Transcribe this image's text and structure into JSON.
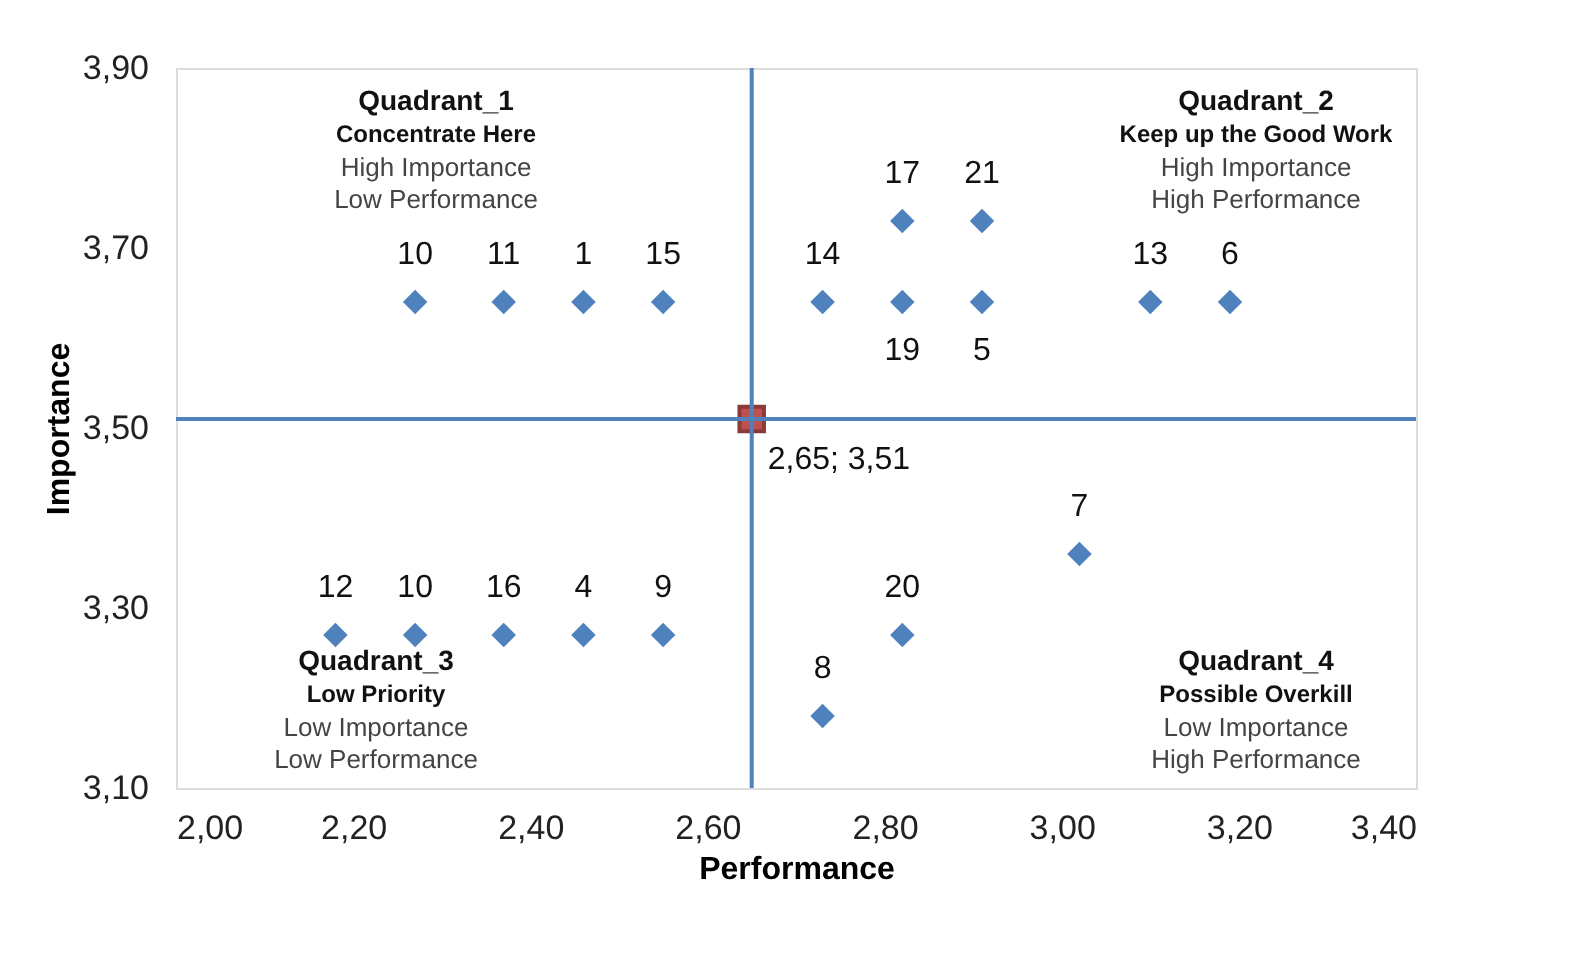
{
  "chart_data": {
    "type": "scatter",
    "xlabel": "Performance",
    "ylabel": "Importance",
    "xlim": [
      2.0,
      3.4
    ],
    "ylim": [
      3.1,
      3.9
    ],
    "xticks": [
      {
        "value": 2.0,
        "label": "2,00"
      },
      {
        "value": 2.2,
        "label": "2,20"
      },
      {
        "value": 2.4,
        "label": "2,40"
      },
      {
        "value": 2.6,
        "label": "2,60"
      },
      {
        "value": 2.8,
        "label": "2,80"
      },
      {
        "value": 3.0,
        "label": "3,00"
      },
      {
        "value": 3.2,
        "label": "3,20"
      },
      {
        "value": 3.4,
        "label": "3,40"
      }
    ],
    "yticks": [
      {
        "value": 3.1,
        "label": "3,10"
      },
      {
        "value": 3.3,
        "label": "3,30"
      },
      {
        "value": 3.5,
        "label": "3,50"
      },
      {
        "value": 3.7,
        "label": "3,70"
      },
      {
        "value": 3.9,
        "label": "3,90"
      }
    ],
    "grid": false,
    "marker": "diamond",
    "series": [
      {
        "name": "10",
        "color": "#4f81bd",
        "x": [
          2.27
        ],
        "values": [
          3.64
        ]
      },
      {
        "name": "11",
        "color": "#4f81bd",
        "x": [
          2.37
        ],
        "values": [
          3.64
        ]
      },
      {
        "name": "1",
        "color": "#4f81bd",
        "x": [
          2.46
        ],
        "values": [
          3.64
        ]
      },
      {
        "name": "15",
        "color": "#4f81bd",
        "x": [
          2.55
        ],
        "values": [
          3.64
        ]
      },
      {
        "name": "17",
        "color": "#4f81bd",
        "x": [
          2.82
        ],
        "values": [
          3.73
        ]
      },
      {
        "name": "21",
        "color": "#4f81bd",
        "x": [
          2.91
        ],
        "values": [
          3.73
        ]
      },
      {
        "name": "14",
        "color": "#4f81bd",
        "x": [
          2.73
        ],
        "values": [
          3.64
        ]
      },
      {
        "name": "19",
        "color": "#4f81bd",
        "x": [
          2.82
        ],
        "values": [
          3.64
        ]
      },
      {
        "name": "5",
        "color": "#4f81bd",
        "x": [
          2.91
        ],
        "values": [
          3.64
        ]
      },
      {
        "name": "13",
        "color": "#4f81bd",
        "x": [
          3.1
        ],
        "values": [
          3.64
        ]
      },
      {
        "name": "6",
        "color": "#4f81bd",
        "x": [
          3.19
        ],
        "values": [
          3.64
        ]
      },
      {
        "name": "12",
        "color": "#4f81bd",
        "x": [
          2.18
        ],
        "values": [
          3.27
        ]
      },
      {
        "name": "10",
        "color": "#4f81bd",
        "x": [
          2.27
        ],
        "values": [
          3.27
        ]
      },
      {
        "name": "16",
        "color": "#4f81bd",
        "x": [
          2.37
        ],
        "values": [
          3.27
        ]
      },
      {
        "name": "4",
        "color": "#4f81bd",
        "x": [
          2.46
        ],
        "values": [
          3.27
        ]
      },
      {
        "name": "9",
        "color": "#4f81bd",
        "x": [
          2.55
        ],
        "values": [
          3.27
        ]
      },
      {
        "name": "7",
        "color": "#4f81bd",
        "x": [
          3.02
        ],
        "values": [
          3.36
        ]
      },
      {
        "name": "20",
        "color": "#4f81bd",
        "x": [
          2.82
        ],
        "values": [
          3.27
        ]
      },
      {
        "name": "8",
        "color": "#4f81bd",
        "x": [
          2.73
        ],
        "values": [
          3.18
        ]
      },
      {
        "color": "#c0504d",
        "marker": "square",
        "x": [
          2.65
        ],
        "values": [
          3.51
        ],
        "value_labels": [
          "2,65; 3,51"
        ]
      }
    ],
    "ref_lines": [
      {
        "axis": "x",
        "value": 2.65,
        "color": "#4f81bd"
      },
      {
        "axis": "y",
        "value": 3.51,
        "color": "#4f81bd"
      }
    ],
    "annotations": [
      "Quadrant_1",
      "Concentrate Here",
      "High Importance",
      "Low Performance",
      "Quadrant_2",
      "Keep up the Good Work",
      "High Importance",
      "High Performance",
      "Quadrant_3",
      "Low Priority",
      "Low Importance",
      "Low Performance",
      "Quadrant_4",
      "Possible Overkill",
      "Low Importance",
      "High Performance"
    ]
  }
}
